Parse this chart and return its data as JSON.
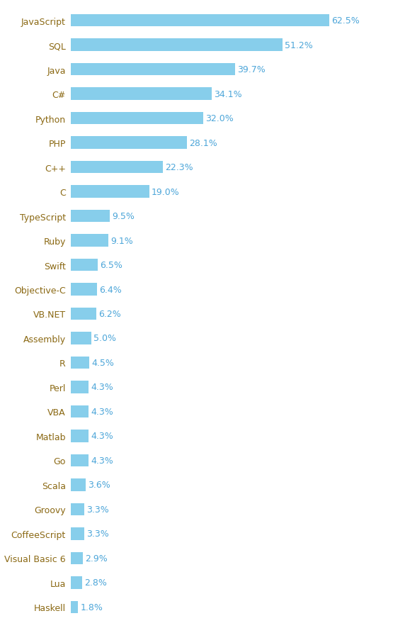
{
  "languages": [
    "JavaScript",
    "SQL",
    "Java",
    "C#",
    "Python",
    "PHP",
    "C++",
    "C",
    "TypeScript",
    "Ruby",
    "Swift",
    "Objective-C",
    "VB.NET",
    "Assembly",
    "R",
    "Perl",
    "VBA",
    "Matlab",
    "Go",
    "Scala",
    "Groovy",
    "CoffeeScript",
    "Visual Basic 6",
    "Lua",
    "Haskell"
  ],
  "values": [
    62.5,
    51.2,
    39.7,
    34.1,
    32.0,
    28.1,
    22.3,
    19.0,
    9.5,
    9.1,
    6.5,
    6.4,
    6.2,
    5.0,
    4.5,
    4.3,
    4.3,
    4.3,
    4.3,
    3.6,
    3.3,
    3.3,
    2.9,
    2.8,
    1.8
  ],
  "bar_color": "#87CEEB",
  "text_color": "#4da6d9",
  "label_color": "#8B6914",
  "bg_color": "#ffffff",
  "bar_height": 0.5,
  "xlim": [
    0,
    75
  ],
  "figsize": [
    5.55,
    8.87
  ],
  "dpi": 100,
  "label_fontsize": 9,
  "value_fontsize": 9
}
